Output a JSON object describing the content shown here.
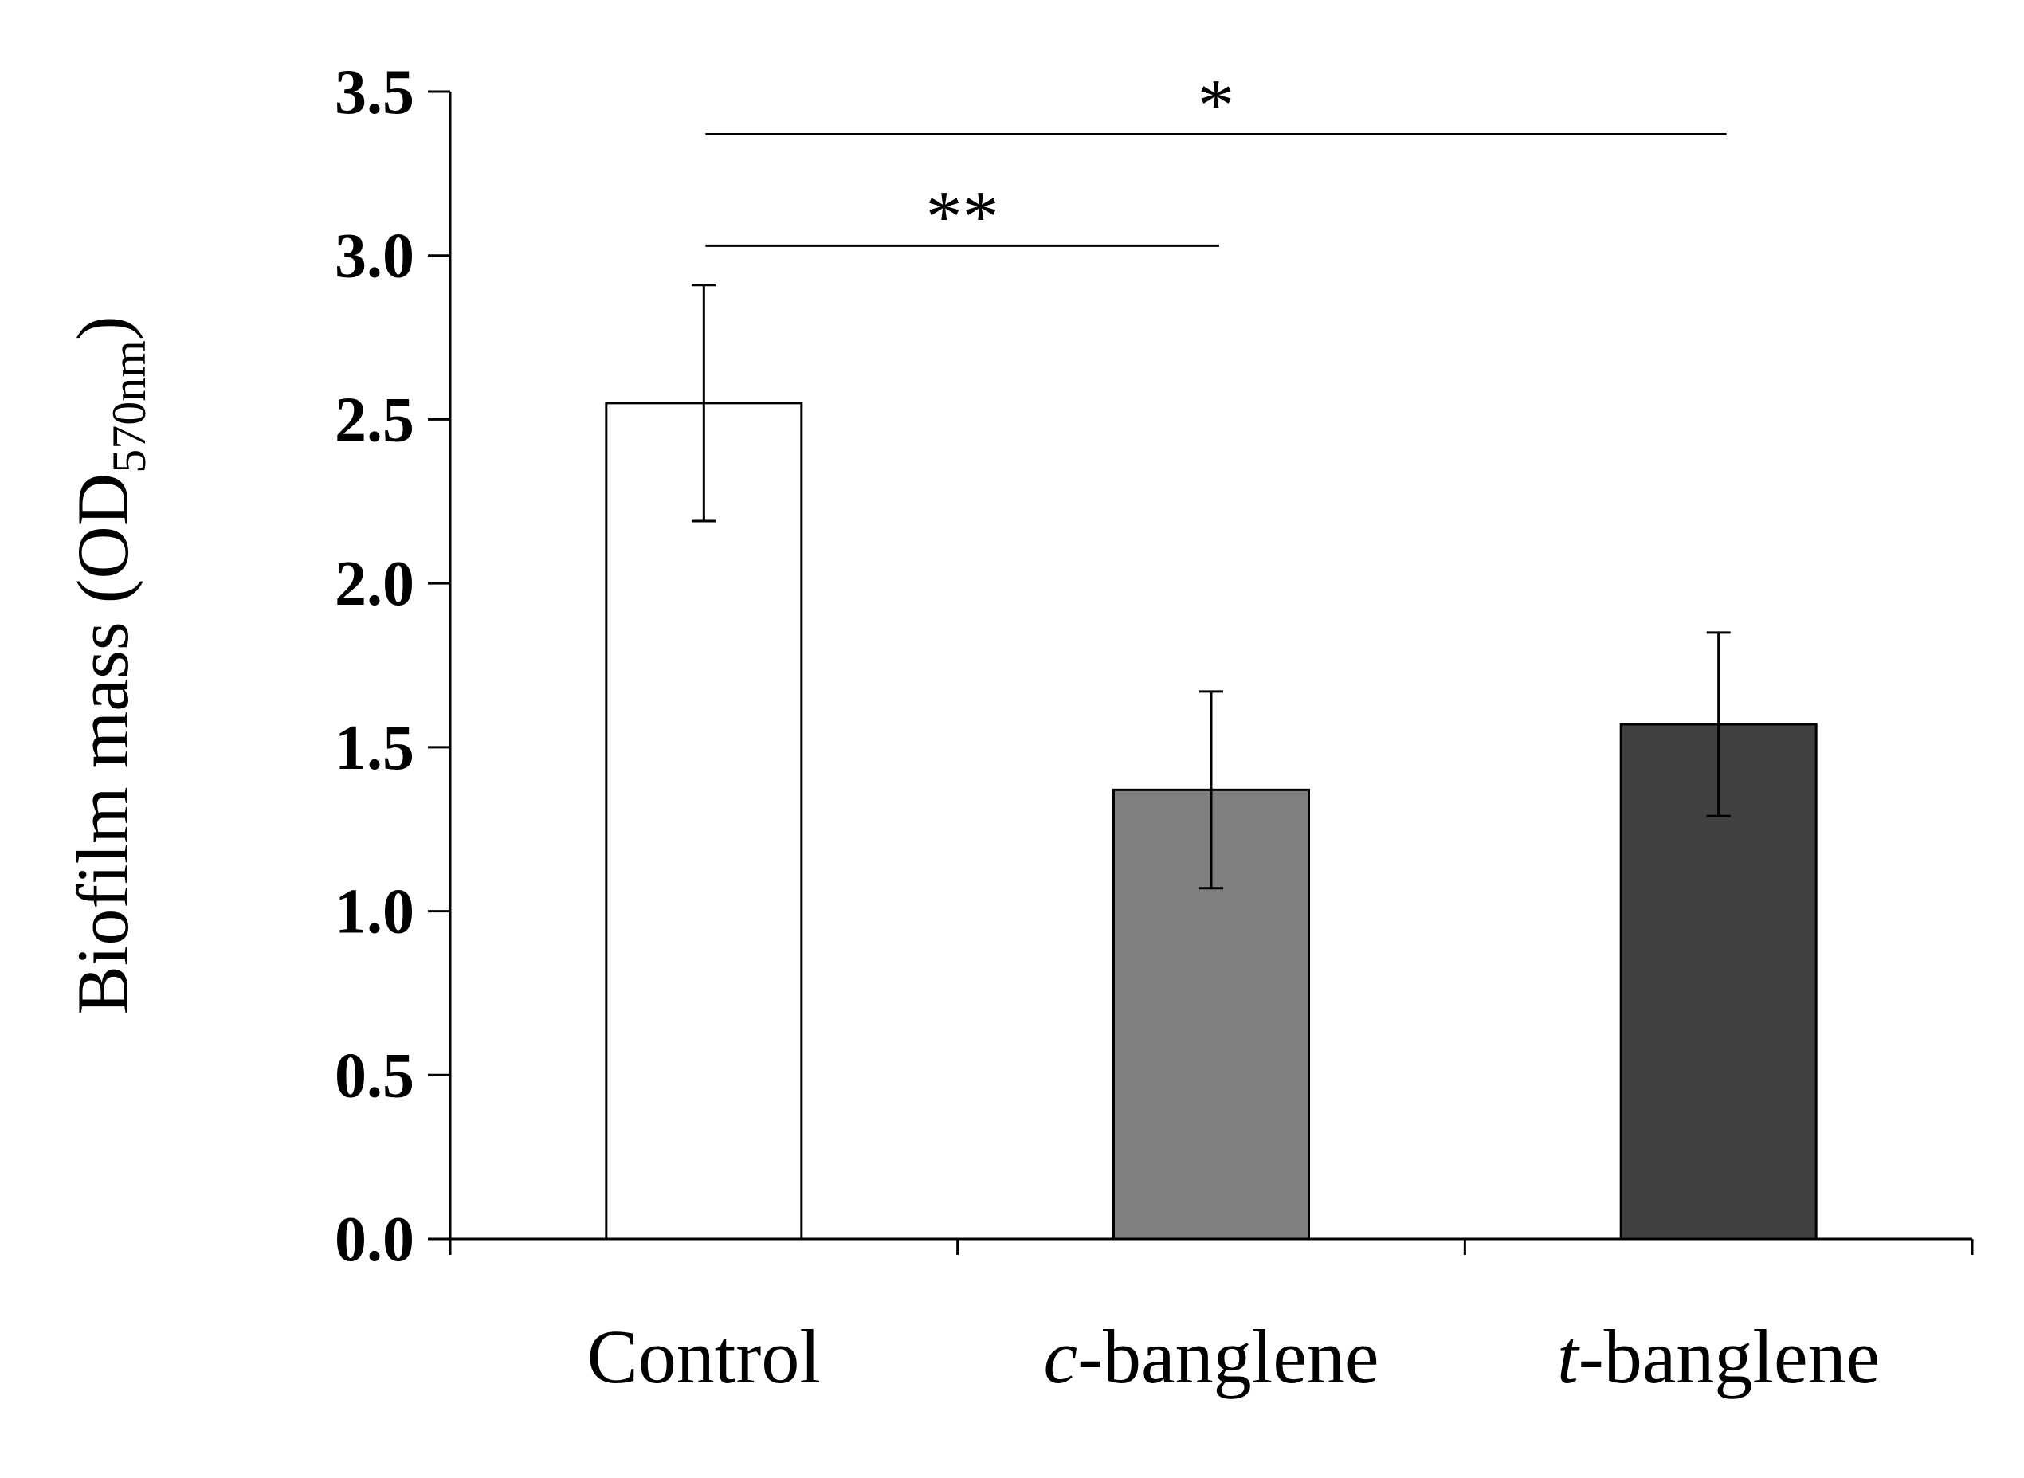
{
  "chart_data": {
    "type": "bar",
    "title": "",
    "xlabel": "",
    "ylabel": "Biofilm mass (OD570nm)",
    "ylabel_parts": {
      "main": "Biofilm mass (OD",
      "sub": "570nm",
      "close": ")"
    },
    "ylim": [
      0,
      3.5
    ],
    "yticks": [
      "0.0",
      "0.5",
      "1.0",
      "1.5",
      "2.0",
      "2.5",
      "3.0",
      "3.5"
    ],
    "categories": [
      {
        "label": "Control",
        "prefix": "",
        "suffix": "Control"
      },
      {
        "label": "c-banglene",
        "prefix": "c",
        "suffix": "-banglene"
      },
      {
        "label": "t-banglene",
        "prefix": "t",
        "suffix": "-banglene"
      }
    ],
    "values": [
      2.55,
      1.37,
      1.57
    ],
    "errors": [
      0.36,
      0.3,
      0.28
    ],
    "colors": [
      "#ffffff",
      "#808080",
      "#404040"
    ],
    "significance": [
      {
        "from": 0,
        "to": 1,
        "y": 3.03,
        "label": "**"
      },
      {
        "from": 0,
        "to": 2,
        "y": 3.37,
        "label": "*"
      }
    ]
  }
}
